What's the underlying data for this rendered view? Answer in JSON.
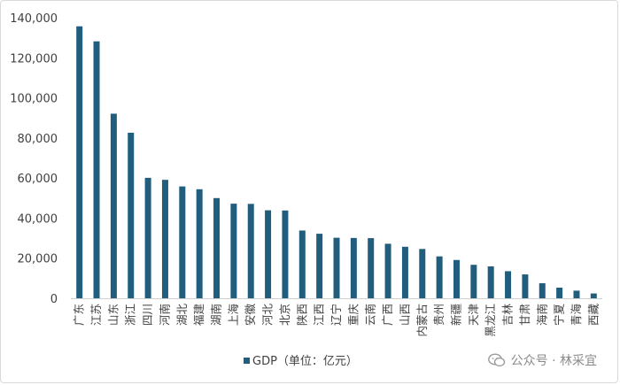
{
  "chart_data": {
    "type": "bar",
    "categories": [
      "广东",
      "江苏",
      "山东",
      "浙江",
      "四川",
      "河南",
      "湖北",
      "福建",
      "湖南",
      "上海",
      "安徽",
      "河北",
      "北京",
      "陕西",
      "江西",
      "辽宁",
      "重庆",
      "云南",
      "广西",
      "山西",
      "内蒙古",
      "贵州",
      "新疆",
      "天津",
      "黑龙江",
      "吉林",
      "甘肃",
      "海南",
      "宁夏",
      "青海",
      "西藏"
    ],
    "series": [
      {
        "name": "GDP（单位：亿元）",
        "values": [
          135700,
          128200,
          92100,
          82600,
          60100,
          59100,
          55800,
          54400,
          50000,
          47200,
          47100,
          43900,
          43800,
          33800,
          32200,
          30200,
          30100,
          30000,
          27200,
          25700,
          24600,
          20900,
          19100,
          16700,
          15900,
          13500,
          11900,
          7500,
          5300,
          3800,
          2400
        ]
      }
    ],
    "ylim": [
      0,
      140000
    ],
    "yticks": [
      "0",
      "20,000",
      "40,000",
      "60,000",
      "80,000",
      "100,000",
      "120,000",
      "140,000"
    ],
    "color": "#215e7d",
    "grid": false,
    "legend_position": "bottom"
  },
  "watermark": {
    "text": "公众号 · 林采宜",
    "icon": "wechat-icon"
  }
}
